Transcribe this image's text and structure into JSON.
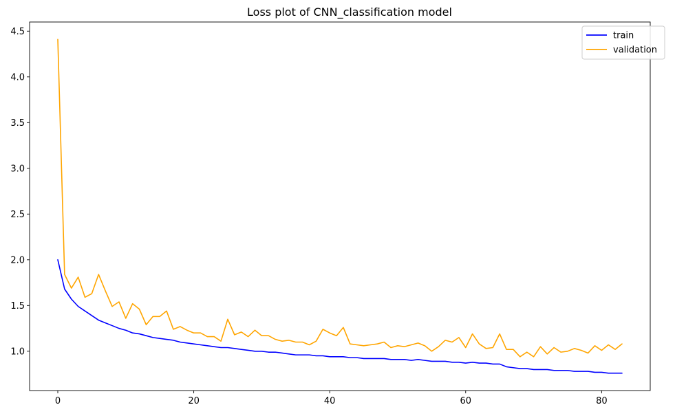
{
  "chart_data": {
    "type": "line",
    "title": "Loss plot of CNN_classification model",
    "xlabel": "",
    "ylabel": "",
    "xlim": [
      -4.15,
      87.15
    ],
    "ylim": [
      0.57,
      4.6
    ],
    "xticks": [
      0,
      20,
      40,
      60,
      80
    ],
    "yticks": [
      1.0,
      1.5,
      2.0,
      2.5,
      3.0,
      3.5,
      4.0,
      4.5
    ],
    "grid": false,
    "legend": "top-right",
    "series": [
      {
        "name": "train",
        "color": "#0000ff",
        "values": [
          2.0,
          1.68,
          1.57,
          1.49,
          1.44,
          1.39,
          1.34,
          1.31,
          1.28,
          1.25,
          1.23,
          1.2,
          1.19,
          1.17,
          1.15,
          1.14,
          1.13,
          1.12,
          1.1,
          1.09,
          1.08,
          1.07,
          1.06,
          1.05,
          1.04,
          1.04,
          1.03,
          1.02,
          1.01,
          1.0,
          1.0,
          0.99,
          0.99,
          0.98,
          0.97,
          0.96,
          0.96,
          0.96,
          0.95,
          0.95,
          0.94,
          0.94,
          0.94,
          0.93,
          0.93,
          0.92,
          0.92,
          0.92,
          0.92,
          0.91,
          0.91,
          0.91,
          0.9,
          0.91,
          0.9,
          0.89,
          0.89,
          0.89,
          0.88,
          0.88,
          0.87,
          0.88,
          0.87,
          0.87,
          0.86,
          0.86,
          0.83,
          0.82,
          0.81,
          0.81,
          0.8,
          0.8,
          0.8,
          0.79,
          0.79,
          0.79,
          0.78,
          0.78,
          0.78,
          0.77,
          0.77,
          0.76,
          0.76,
          0.76
        ]
      },
      {
        "name": "validation",
        "color": "#ffa500",
        "values": [
          4.41,
          1.84,
          1.69,
          1.81,
          1.59,
          1.63,
          1.84,
          1.66,
          1.49,
          1.54,
          1.36,
          1.52,
          1.46,
          1.29,
          1.38,
          1.38,
          1.44,
          1.24,
          1.27,
          1.23,
          1.2,
          1.2,
          1.16,
          1.16,
          1.11,
          1.35,
          1.18,
          1.21,
          1.16,
          1.23,
          1.17,
          1.17,
          1.13,
          1.11,
          1.12,
          1.1,
          1.1,
          1.07,
          1.11,
          1.24,
          1.2,
          1.17,
          1.26,
          1.08,
          1.07,
          1.06,
          1.07,
          1.08,
          1.1,
          1.04,
          1.06,
          1.05,
          1.07,
          1.09,
          1.06,
          1.0,
          1.05,
          1.12,
          1.1,
          1.15,
          1.04,
          1.19,
          1.08,
          1.03,
          1.04,
          1.19,
          1.02,
          1.02,
          0.94,
          0.99,
          0.94,
          1.05,
          0.97,
          1.04,
          0.99,
          1.0,
          1.03,
          1.01,
          0.98,
          1.06,
          1.01,
          1.07,
          1.02,
          1.08
        ]
      }
    ]
  }
}
